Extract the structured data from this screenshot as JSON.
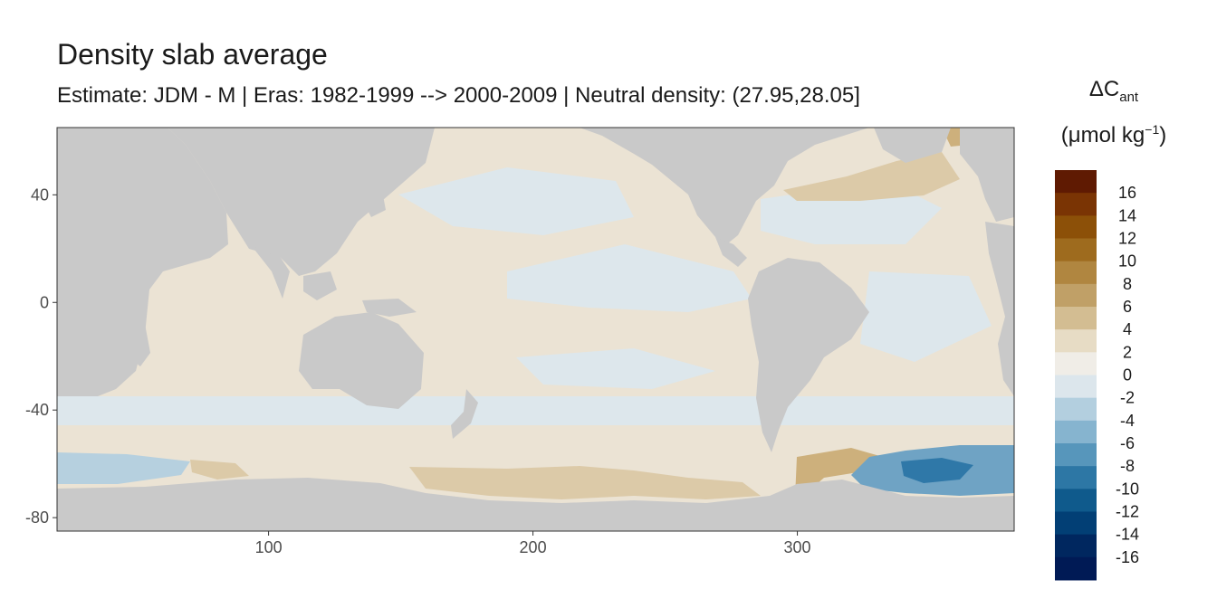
{
  "title": "Density slab average",
  "subtitle": "Estimate: JDM - M | Eras: 1982-1999 --> 2000-2009 | Neutral density: (27.95,28.05]",
  "legend": {
    "title_prefix": "ΔC",
    "title_sub": "ant",
    "unit_prefix": "(μmol kg",
    "unit_sup": "−1",
    "unit_suffix": ")",
    "bins": [
      {
        "label": "16",
        "color": "#5f1a02"
      },
      {
        "label": "14",
        "color": "#7a3404"
      },
      {
        "label": "12",
        "color": "#8c5008"
      },
      {
        "label": "10",
        "color": "#9e6b1e"
      },
      {
        "label": "8",
        "color": "#b08640"
      },
      {
        "label": "6",
        "color": "#c0a067"
      },
      {
        "label": "4",
        "color": "#d3bd92"
      },
      {
        "label": "2",
        "color": "#e7dcc5"
      },
      {
        "label": "0",
        "color": "#f0ede7"
      },
      {
        "label": "-2",
        "color": "#dce6ec"
      },
      {
        "label": "-4",
        "color": "#b3cfdf"
      },
      {
        "label": "-6",
        "color": "#86b4cf"
      },
      {
        "label": "-8",
        "color": "#5796bb"
      },
      {
        "label": "-10",
        "color": "#2d77a5"
      },
      {
        "label": "-12",
        "color": "#0f5a8c"
      },
      {
        "label": "-14",
        "color": "#023f75"
      },
      {
        "label": "-16",
        "color": "#00275f"
      },
      {
        "label": "",
        "color": "#001a55"
      }
    ]
  },
  "map": {
    "type": "heatmap",
    "x_axis": {
      "range": [
        20,
        382
      ],
      "ticks": [
        100,
        200,
        300
      ]
    },
    "y_axis": {
      "range": [
        -85,
        65
      ],
      "ticks": [
        40,
        0,
        -40,
        -80
      ]
    },
    "colors": {
      "land": "#c9c9c9",
      "no_data": "#ffffff",
      "near_zero_pos": "#ebe3d4",
      "near_zero_neg": "#dde7ec",
      "positive_2_4": "#dccaa8",
      "positive_4_6": "#cdb07c",
      "negative_2_4": "#b6d0df",
      "negative_4_8": "#6fa3c4",
      "negative_8_12": "#2f78a8"
    }
  }
}
